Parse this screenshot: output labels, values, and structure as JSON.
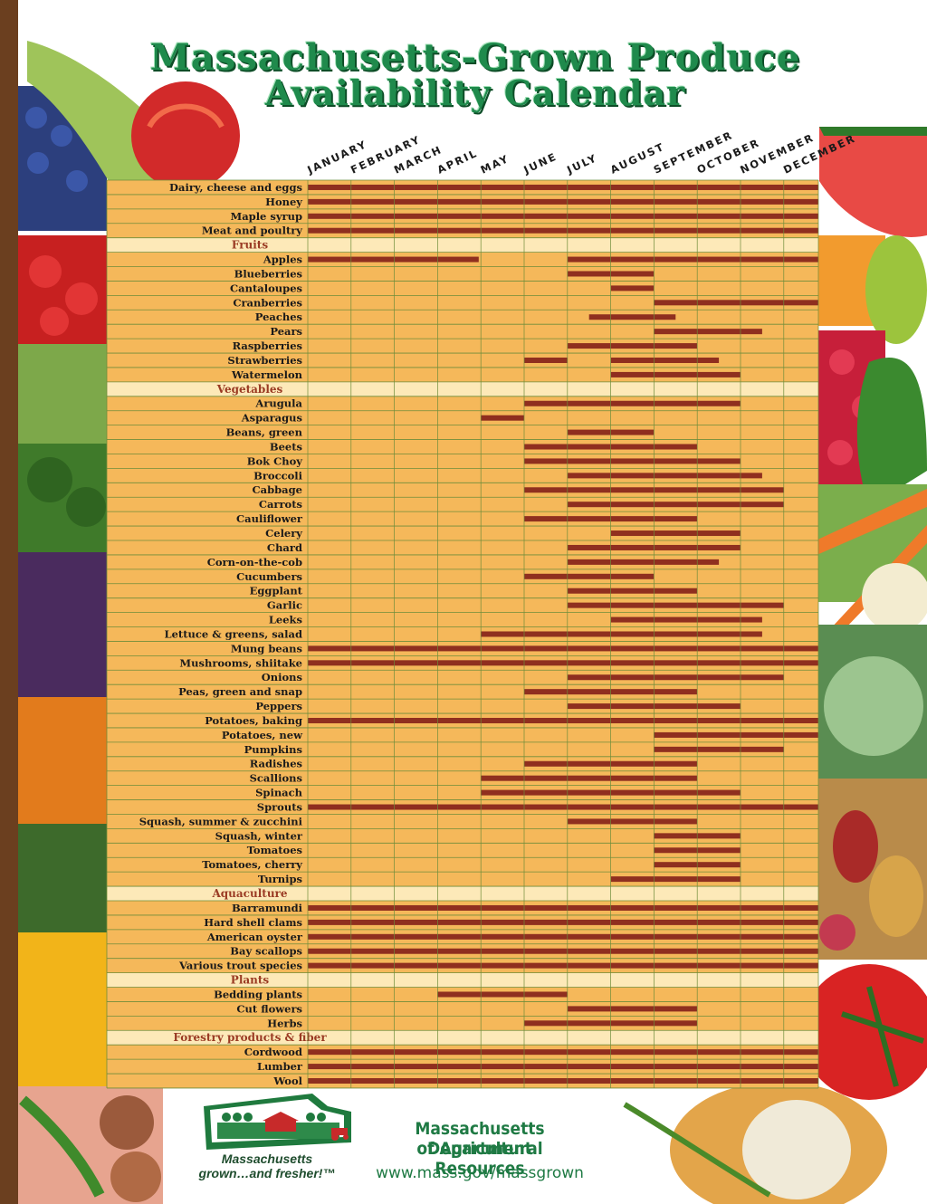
{
  "title": {
    "line1": "Massachusetts-Grown Produce",
    "line2": "Availability Calendar"
  },
  "months": [
    "JANUARY",
    "FEBRUARY",
    "MARCH",
    "APRIL",
    "MAY",
    "JUNE",
    "JULY",
    "AUGUST",
    "SEPTEMBER",
    "OCTOBER",
    "NOVEMBER",
    "DECEMBER"
  ],
  "colors": {
    "bar": "#8f2f1f",
    "chart_bg": "#f5b85a",
    "grid": "#6f8d3a",
    "section_bg": "#fde9b8",
    "section_text": "#9a3a23",
    "title": "#1f8a4c"
  },
  "chart_data": {
    "type": "table",
    "title": "Massachusetts-Grown Produce Availability Calendar",
    "x_axis": "month",
    "rows": [
      {
        "kind": "item",
        "label": "Dairy, cheese and eggs",
        "ranges": [
          [
            1,
            12.9
          ]
        ]
      },
      {
        "kind": "item",
        "label": "Honey",
        "ranges": [
          [
            1,
            12.9
          ]
        ]
      },
      {
        "kind": "item",
        "label": "Maple syrup",
        "ranges": [
          [
            1,
            12.9
          ]
        ]
      },
      {
        "kind": "item",
        "label": "Meat and poultry",
        "ranges": [
          [
            1,
            12.9
          ]
        ]
      },
      {
        "kind": "section",
        "label": "Fruits"
      },
      {
        "kind": "item",
        "label": "Apples",
        "ranges": [
          [
            1,
            4.95
          ],
          [
            7,
            12.9
          ]
        ]
      },
      {
        "kind": "item",
        "label": "Blueberries",
        "ranges": [
          [
            7,
            9
          ]
        ]
      },
      {
        "kind": "item",
        "label": "Cantaloupes",
        "ranges": [
          [
            8,
            9
          ]
        ]
      },
      {
        "kind": "item",
        "label": "Cranberries",
        "ranges": [
          [
            9,
            12.9
          ]
        ]
      },
      {
        "kind": "item",
        "label": "Peaches",
        "ranges": [
          [
            7.5,
            9.5
          ]
        ]
      },
      {
        "kind": "item",
        "label": "Pears",
        "ranges": [
          [
            9,
            11.5
          ]
        ]
      },
      {
        "kind": "item",
        "label": "Raspberries",
        "ranges": [
          [
            7,
            10
          ]
        ]
      },
      {
        "kind": "item",
        "label": "Strawberries",
        "ranges": [
          [
            6,
            7
          ],
          [
            8,
            10.5
          ]
        ]
      },
      {
        "kind": "item",
        "label": "Watermelon",
        "ranges": [
          [
            8,
            11
          ]
        ]
      },
      {
        "kind": "section",
        "label": "Vegetables"
      },
      {
        "kind": "item",
        "label": "Arugula",
        "ranges": [
          [
            6,
            11
          ]
        ]
      },
      {
        "kind": "item",
        "label": "Asparagus",
        "ranges": [
          [
            5,
            6
          ]
        ]
      },
      {
        "kind": "item",
        "label": "Beans, green",
        "ranges": [
          [
            7,
            9
          ]
        ]
      },
      {
        "kind": "item",
        "label": "Beets",
        "ranges": [
          [
            6,
            10
          ]
        ]
      },
      {
        "kind": "item",
        "label": "Bok Choy",
        "ranges": [
          [
            6,
            11
          ]
        ]
      },
      {
        "kind": "item",
        "label": "Broccoli",
        "ranges": [
          [
            7,
            11.5
          ]
        ]
      },
      {
        "kind": "item",
        "label": "Cabbage",
        "ranges": [
          [
            6,
            12
          ]
        ]
      },
      {
        "kind": "item",
        "label": "Carrots",
        "ranges": [
          [
            7,
            12
          ]
        ]
      },
      {
        "kind": "item",
        "label": "Cauliflower",
        "ranges": [
          [
            6,
            10
          ]
        ]
      },
      {
        "kind": "item",
        "label": "Celery",
        "ranges": [
          [
            8,
            11
          ]
        ]
      },
      {
        "kind": "item",
        "label": "Chard",
        "ranges": [
          [
            7,
            11
          ]
        ]
      },
      {
        "kind": "item",
        "label": "Corn-on-the-cob",
        "ranges": [
          [
            7,
            10.5
          ]
        ]
      },
      {
        "kind": "item",
        "label": "Cucumbers",
        "ranges": [
          [
            6,
            9
          ]
        ]
      },
      {
        "kind": "item",
        "label": "Eggplant",
        "ranges": [
          [
            7,
            10
          ]
        ]
      },
      {
        "kind": "item",
        "label": "Garlic",
        "ranges": [
          [
            7,
            12
          ]
        ]
      },
      {
        "kind": "item",
        "label": "Leeks",
        "ranges": [
          [
            8,
            11.5
          ]
        ]
      },
      {
        "kind": "item",
        "label": "Lettuce & greens, salad",
        "ranges": [
          [
            5,
            11.5
          ]
        ]
      },
      {
        "kind": "item",
        "label": "Mung beans",
        "ranges": [
          [
            1,
            12.9
          ]
        ]
      },
      {
        "kind": "item",
        "label": "Mushrooms, shiitake",
        "ranges": [
          [
            1,
            12.9
          ]
        ]
      },
      {
        "kind": "item",
        "label": "Onions",
        "ranges": [
          [
            7,
            12
          ]
        ]
      },
      {
        "kind": "item",
        "label": "Peas, green and snap",
        "ranges": [
          [
            6,
            10
          ]
        ]
      },
      {
        "kind": "item",
        "label": "Peppers",
        "ranges": [
          [
            7,
            11
          ]
        ]
      },
      {
        "kind": "item",
        "label": "Potatoes, baking",
        "ranges": [
          [
            1,
            12.9
          ]
        ]
      },
      {
        "kind": "item",
        "label": "Potatoes, new",
        "ranges": [
          [
            9,
            12.9
          ]
        ]
      },
      {
        "kind": "item",
        "label": "Pumpkins",
        "ranges": [
          [
            9,
            12
          ]
        ]
      },
      {
        "kind": "item",
        "label": "Radishes",
        "ranges": [
          [
            6,
            10
          ]
        ]
      },
      {
        "kind": "item",
        "label": "Scallions",
        "ranges": [
          [
            5,
            10
          ]
        ]
      },
      {
        "kind": "item",
        "label": "Spinach",
        "ranges": [
          [
            5,
            11
          ]
        ]
      },
      {
        "kind": "item",
        "label": "Sprouts",
        "ranges": [
          [
            1,
            12.9
          ]
        ]
      },
      {
        "kind": "item",
        "label": "Squash, summer & zucchini",
        "ranges": [
          [
            7,
            10
          ]
        ]
      },
      {
        "kind": "item",
        "label": "Squash, winter",
        "ranges": [
          [
            9,
            11
          ]
        ]
      },
      {
        "kind": "item",
        "label": "Tomatoes",
        "ranges": [
          [
            9,
            11
          ]
        ]
      },
      {
        "kind": "item",
        "label": "Tomatoes, cherry",
        "ranges": [
          [
            9,
            11
          ]
        ]
      },
      {
        "kind": "item",
        "label": "Turnips",
        "ranges": [
          [
            8,
            11
          ]
        ]
      },
      {
        "kind": "section",
        "label": "Aquaculture"
      },
      {
        "kind": "item",
        "label": "Barramundi",
        "ranges": [
          [
            1,
            12.9
          ]
        ]
      },
      {
        "kind": "item",
        "label": "Hard shell clams",
        "ranges": [
          [
            1,
            12.9
          ]
        ]
      },
      {
        "kind": "item",
        "label": "American oyster",
        "ranges": [
          [
            1,
            12.9
          ]
        ]
      },
      {
        "kind": "item",
        "label": "Bay scallops",
        "ranges": [
          [
            1,
            12.9
          ]
        ]
      },
      {
        "kind": "item",
        "label": "Various trout species",
        "ranges": [
          [
            1,
            12.9
          ]
        ]
      },
      {
        "kind": "section",
        "label": "Plants"
      },
      {
        "kind": "item",
        "label": "Bedding plants",
        "ranges": [
          [
            4,
            7
          ]
        ]
      },
      {
        "kind": "item",
        "label": "Cut flowers",
        "ranges": [
          [
            7,
            10
          ]
        ]
      },
      {
        "kind": "item",
        "label": "Herbs",
        "ranges": [
          [
            6,
            10
          ]
        ]
      },
      {
        "kind": "section",
        "label": "Forestry products & fiber"
      },
      {
        "kind": "item",
        "label": "Cordwood",
        "ranges": [
          [
            1,
            12.9
          ]
        ]
      },
      {
        "kind": "item",
        "label": "Lumber",
        "ranges": [
          [
            1,
            12.9
          ]
        ]
      },
      {
        "kind": "item",
        "label": "Wool",
        "ranges": [
          [
            1,
            12.9
          ]
        ]
      }
    ]
  },
  "footer": {
    "logo_line1": "Massachusetts",
    "logo_line2": "grown…and fresher!™",
    "dept_line1": "Massachusetts Department",
    "dept_line2": "of Agricultural Resources",
    "url": "www.mass.gov/massgrown"
  }
}
